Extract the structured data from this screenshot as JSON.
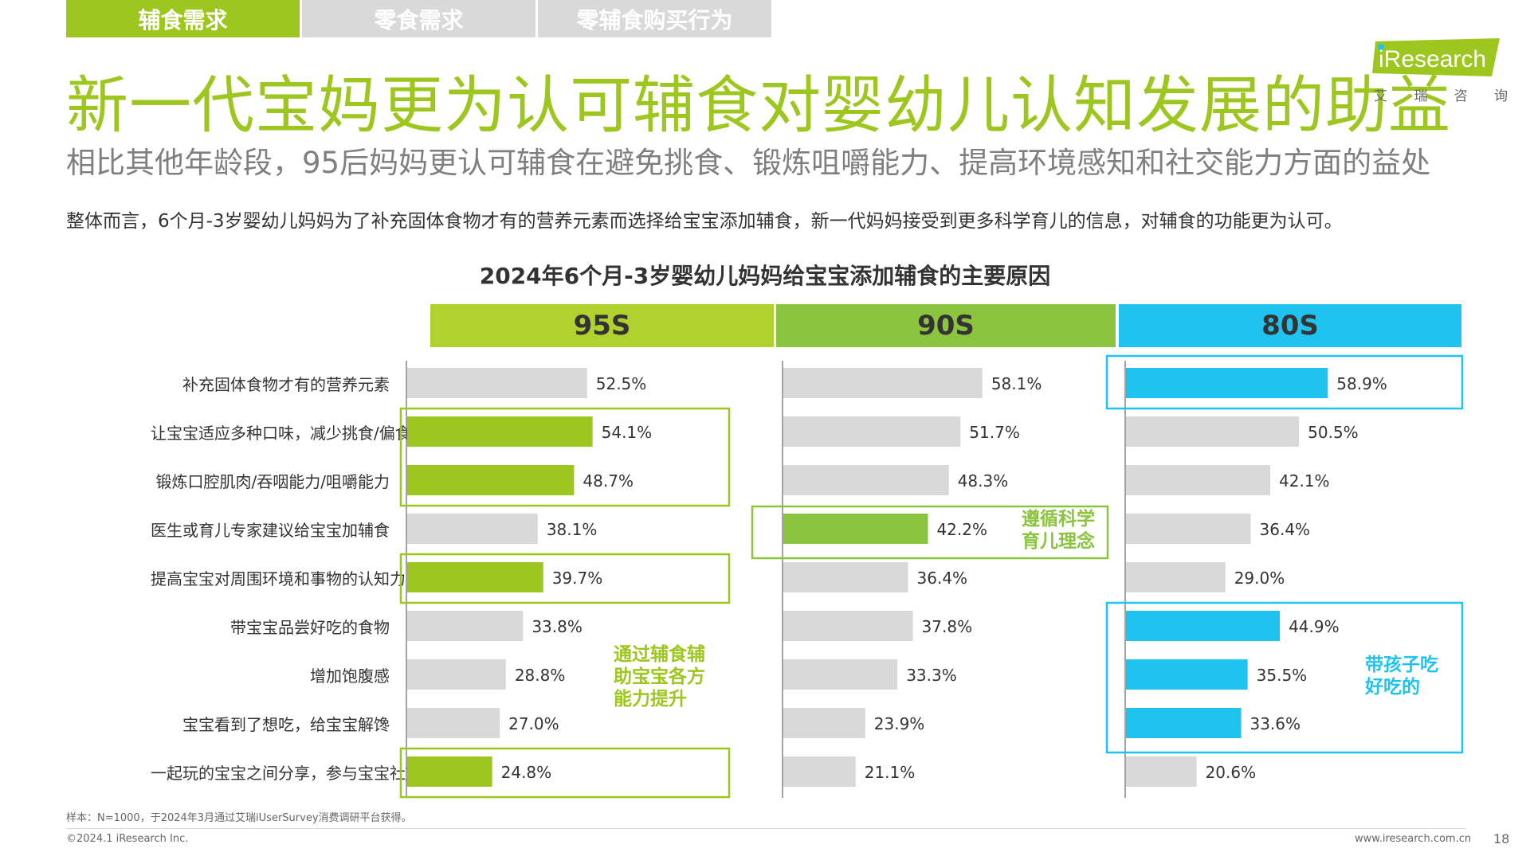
{
  "tabs": [
    "辅食需求",
    "零食需求",
    "零辅食购买行为"
  ],
  "title": "新一代宝妈更为认可辅食对婴幼儿认知发展的助益",
  "subtitle": "相比其他年龄段，95后妈妈更认可辅食在避免挑食、锻炼咀嚼能力、提高环境感知和社交能力方面的益处",
  "description": "整体而言，6个月-3岁婴幼儿妈妈为了补充固体食物才有的营养元素而选择给宝宝添加辅食，新一代妈妈接受到更多科学育儿的信息，对辅食的功能更为认可。",
  "logo": {
    "word": "iResearch",
    "sub": [
      "艾",
      "瑞",
      "咨",
      "询"
    ]
  },
  "colors": {
    "green": "#9dc61e",
    "green_dark": "#8bc43f",
    "cyan": "#1fc3ef",
    "gray_bar": "#d9d9d9"
  },
  "footer": {
    "note": "样本：N=1000，于2024年3月通过艾瑞iUserSurvey消费调研平台获得。",
    "copyright": "©2024.1 iResearch Inc.",
    "site": "www.iresearch.com.cn",
    "page": "18"
  },
  "chart_data": {
    "type": "bar",
    "orientation": "horizontal",
    "title": "2024年6个月-3岁婴幼儿妈妈给宝宝添加辅食的主要原因",
    "categories": [
      "补充固体食物才有的营养元素",
      "让宝宝适应多种口味，减少挑食/偏食风险",
      "锻炼口腔肌肉/吞咽能力/咀嚼能力",
      "医生或育儿专家建议给宝宝加辅食",
      "提高宝宝对周围环境和事物的认知力",
      "带宝宝品尝好吃的食物",
      "增加饱腹感",
      "宝宝看到了想吃，给宝宝解馋",
      "一起玩的宝宝之间分享，参与宝宝社交"
    ],
    "unit": "%",
    "series": [
      {
        "name": "95S",
        "header_color": "#b0d12e",
        "values": [
          52.5,
          54.1,
          48.7,
          38.1,
          39.7,
          33.8,
          28.8,
          27.0,
          24.8
        ],
        "value_labels": [
          "52.5%",
          "54.1%",
          "48.7%",
          "38.1%",
          "39.7%",
          "33.8%",
          "28.8%",
          "27.0%",
          "24.8%"
        ],
        "highlighted": [
          1,
          2,
          4,
          8
        ],
        "highlight_color": "#9dc61e",
        "annotation": "通过辅食辅助宝宝各方能力提升"
      },
      {
        "name": "90S",
        "header_color": "#8bc43f",
        "values": [
          58.1,
          51.7,
          48.3,
          42.2,
          36.4,
          37.8,
          33.3,
          23.9,
          21.1
        ],
        "value_labels": [
          "58.1%",
          "51.7%",
          "48.3%",
          "42.2%",
          "36.4%",
          "37.8%",
          "33.3%",
          "23.9%",
          "21.1%"
        ],
        "highlighted": [
          3
        ],
        "highlight_color": "#8bc43f",
        "annotation": "遵循科学育儿理念"
      },
      {
        "name": "80S",
        "header_color": "#1fc3ef",
        "values": [
          58.9,
          50.5,
          42.1,
          36.4,
          29.0,
          44.9,
          35.5,
          33.6,
          20.6
        ],
        "value_labels": [
          "58.9%",
          "50.5%",
          "42.1%",
          "36.4%",
          "29.0%",
          "44.9%",
          "35.5%",
          "33.6%",
          "20.6%"
        ],
        "highlighted": [
          0,
          5,
          6,
          7
        ],
        "highlight_color": "#1fc3ef",
        "annotation": "带孩子吃好吃的"
      }
    ],
    "xlim": [
      0,
      100
    ],
    "grid": false,
    "legend": "none"
  }
}
